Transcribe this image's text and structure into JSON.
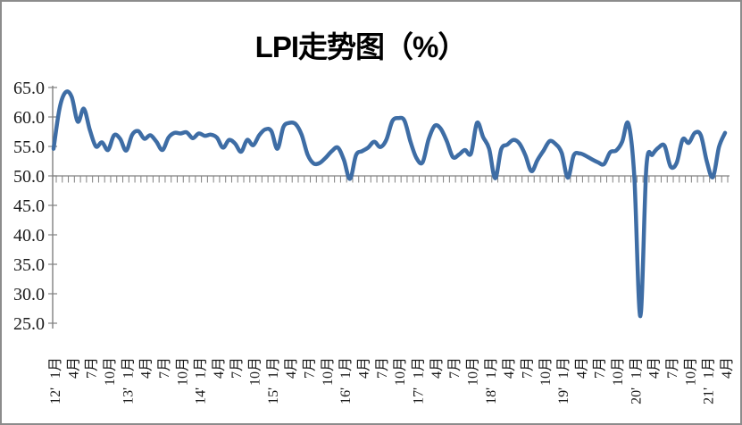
{
  "window": {
    "background_color": "#ffffff",
    "border_color": "#8c8c8c"
  },
  "chart": {
    "line_color": "#3e6da5",
    "axis_color": "#808080",
    "text_color": "#000000"
  },
  "chart_data": {
    "type": "line",
    "title": "LPI走势图（%）",
    "unit": "%",
    "ylim": [
      25.0,
      65.0
    ],
    "y_tick_interval": 5.0,
    "y_tick_labels": [
      "65.0",
      "60.0",
      "55.0",
      "50.0",
      "45.0",
      "40.0",
      "35.0",
      "30.0",
      "25.0"
    ],
    "x_axis_cross_value": 50.0,
    "x_tick_label_every_n_months": 3,
    "x_tick_labels": [
      "1月",
      "4月",
      "7月",
      "10月",
      "1月",
      "4月",
      "7月",
      "10月",
      "1月",
      "4月",
      "7月",
      "10月",
      "1月",
      "4月",
      "7月",
      "10月",
      "1月",
      "4月",
      "7月",
      "10月",
      "1月",
      "4月",
      "7月",
      "10月",
      "1月",
      "4月",
      "7月",
      "10月",
      "1月",
      "4月",
      "7月",
      "10月",
      "1月",
      "4月",
      "7月",
      "10月",
      "1月",
      "4月"
    ],
    "year_labels": [
      "12'",
      "13'",
      "14'",
      "15'",
      "16'",
      "17'",
      "18'",
      "19'",
      "20'",
      "21'"
    ],
    "grid": false,
    "legend_position": "none",
    "series": [
      {
        "name": "LPI",
        "start_month": "2012-01",
        "end_month": "2021-04",
        "values": [
          54.6,
          61.5,
          64.2,
          63.4,
          59.2,
          61.4,
          57.8,
          55.0,
          55.7,
          54.4,
          56.9,
          56.3,
          54.3,
          57.0,
          57.6,
          56.3,
          56.9,
          55.8,
          54.4,
          56.5,
          57.3,
          57.2,
          57.4,
          56.4,
          57.2,
          56.8,
          57.0,
          56.5,
          54.8,
          56.1,
          55.5,
          54.1,
          56.1,
          55.2,
          56.9,
          57.9,
          57.6,
          54.6,
          58.3,
          59.0,
          58.8,
          57.0,
          53.6,
          52.1,
          52.2,
          53.1,
          54.2,
          54.8,
          52.7,
          49.5,
          53.5,
          54.2,
          54.8,
          55.8,
          54.9,
          56.1,
          59.3,
          59.8,
          59.4,
          55.8,
          53.0,
          52.3,
          56.2,
          58.5,
          58.0,
          55.9,
          53.2,
          53.6,
          54.4,
          53.8,
          59.0,
          56.6,
          54.6,
          49.6,
          54.5,
          55.3,
          56.1,
          55.5,
          53.5,
          50.8,
          52.7,
          54.3,
          55.9,
          55.4,
          53.9,
          49.7,
          53.5,
          53.8,
          53.4,
          52.8,
          52.3,
          52.0,
          54.0,
          54.3,
          55.8,
          58.9,
          49.9,
          26.2,
          51.5,
          53.6,
          54.8,
          55.1,
          51.6,
          52.2,
          56.2,
          55.6,
          57.3,
          56.9,
          52.4,
          49.8,
          54.9,
          57.3
        ]
      }
    ]
  }
}
